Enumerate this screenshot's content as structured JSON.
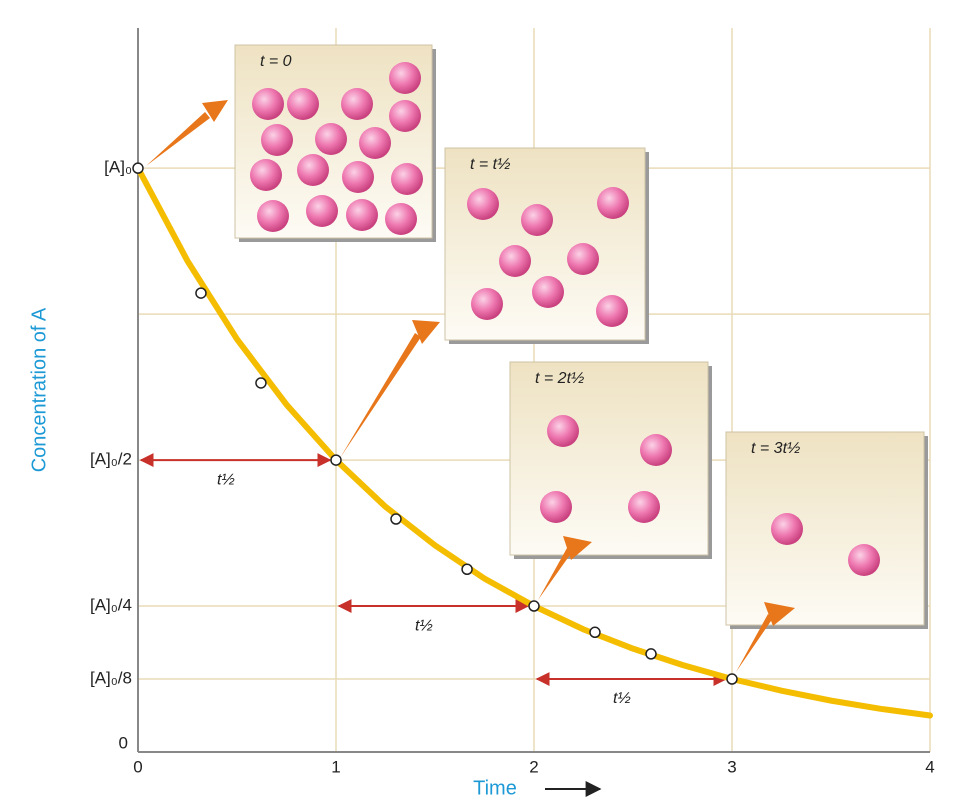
{
  "chart_data": {
    "type": "line",
    "x_label": "Time",
    "y_label": "Concentration of A",
    "xlim": [
      0,
      4
    ],
    "ylim": [
      0,
      1.24
    ],
    "xticks": [
      0,
      1,
      2,
      3,
      4
    ],
    "yticks": [
      0,
      {
        "value": 0.125,
        "label": "[A]₀/8"
      },
      {
        "value": 0.25,
        "label": "[A]₀/4"
      },
      {
        "value": 0.5,
        "label": "[A]₀/2"
      },
      {
        "value": 0.75,
        "label": null
      },
      {
        "value": 1,
        "label": "[A]₀"
      }
    ],
    "grid": true,
    "series": [
      {
        "color": "#f4bd00",
        "markers": false,
        "x": [
          0,
          0.25,
          0.5,
          0.75,
          1,
          1.25,
          1.5,
          1.75,
          2,
          2.25,
          2.5,
          2.75,
          3,
          3.25,
          3.5,
          3.75,
          4
        ],
        "values": [
          1,
          0.841,
          0.707,
          0.595,
          0.5,
          0.42,
          0.354,
          0.297,
          0.25,
          0.21,
          0.177,
          0.149,
          0.125,
          0.105,
          0.088,
          0.074,
          0.0625
        ]
      },
      {
        "color": "#ffffff",
        "markers": true,
        "x": [
          0,
          0.318,
          0.621,
          1,
          1.303,
          1.662,
          2,
          2.308,
          2.591,
          3
        ],
        "values": [
          1,
          0.786,
          0.632,
          0.5,
          0.399,
          0.313,
          0.25,
          0.205,
          0.168,
          0.125
        ]
      }
    ],
    "annotations": [
      {
        "label": "t½",
        "from": 0,
        "to": 1,
        "y": 0.5
      },
      {
        "label": "t½",
        "from": 1,
        "to": 2,
        "y": 0.25
      },
      {
        "label": "t½",
        "from": 2,
        "to": 3,
        "y": 0.125
      }
    ],
    "panels": [
      {
        "label": "t = 0",
        "molecules": 16
      },
      {
        "label": "t = t½",
        "molecules": 8
      },
      {
        "label": "t = 2t½",
        "molecules": 4
      },
      {
        "label": "t = 3t½",
        "molecules": 2
      }
    ]
  }
}
